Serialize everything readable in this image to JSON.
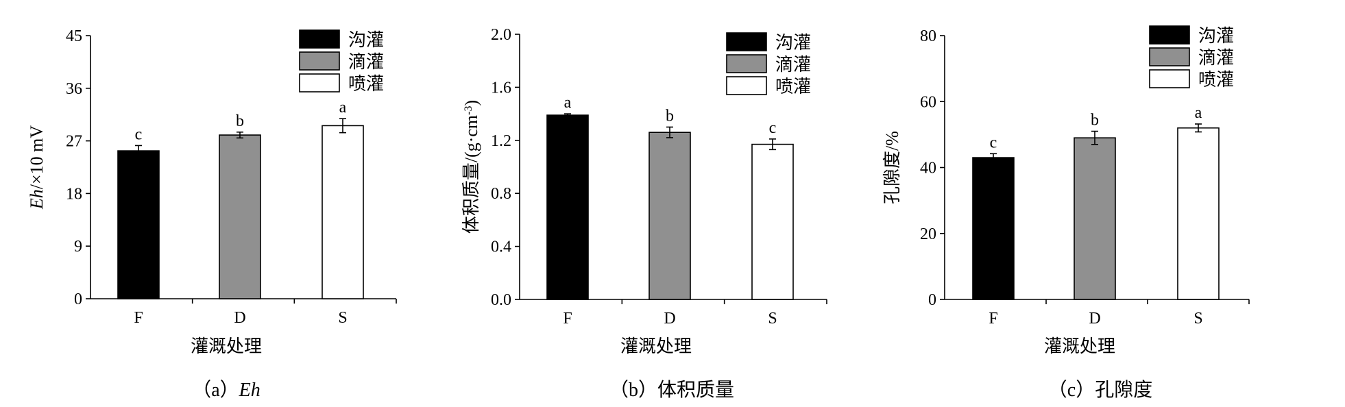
{
  "chart_data": [
    {
      "type": "bar",
      "categories": [
        "F",
        "D",
        "S"
      ],
      "values": [
        25.3,
        28.0,
        29.6
      ],
      "errors": [
        0.9,
        0.5,
        1.2
      ],
      "letters": [
        "c",
        "b",
        "a"
      ],
      "colors": [
        "#000000",
        "#909090",
        "#ffffff"
      ],
      "ylim": [
        0,
        45
      ],
      "yticks": [
        0,
        9,
        18,
        27,
        36,
        45
      ],
      "ytick_labels": [
        "0",
        "9",
        "18",
        "27",
        "36",
        "45"
      ],
      "xlabel": "灌溉处理",
      "ylabel_italic": "Eh",
      "ylabel_rest": "/×10 mV",
      "legend": [
        "沟灌",
        "滴灌",
        "喷灌"
      ],
      "legend_position": "top-right",
      "caption_prefix": "（a）",
      "caption_name": "Eh"
    },
    {
      "type": "bar",
      "categories": [
        "F",
        "D",
        "S"
      ],
      "values": [
        1.39,
        1.26,
        1.17
      ],
      "errors": [
        0.01,
        0.04,
        0.04
      ],
      "letters": [
        "a",
        "b",
        "c"
      ],
      "colors": [
        "#000000",
        "#909090",
        "#ffffff"
      ],
      "ylim": [
        0,
        2.0
      ],
      "yticks": [
        0,
        0.4,
        0.8,
        1.2,
        1.6,
        2.0
      ],
      "ytick_labels": [
        "0.0",
        "0.4",
        "0.8",
        "1.2",
        "1.6",
        "2.0"
      ],
      "xlabel": "灌溉处理",
      "ylabel_main": "体积质量/(g·cm",
      "ylabel_sup": "-3",
      "ylabel_end": ")",
      "legend": [
        "沟灌",
        "滴灌",
        "喷灌"
      ],
      "legend_position": "top-right",
      "caption_prefix": "（b）",
      "caption_name": "体积质量"
    },
    {
      "type": "bar",
      "categories": [
        "F",
        "D",
        "S"
      ],
      "values": [
        43,
        49,
        52
      ],
      "errors": [
        1.2,
        2.0,
        1.2
      ],
      "letters": [
        "c",
        "b",
        "a"
      ],
      "colors": [
        "#000000",
        "#909090",
        "#ffffff"
      ],
      "ylim": [
        0,
        80
      ],
      "yticks": [
        0,
        20,
        40,
        60,
        80
      ],
      "ytick_labels": [
        "0",
        "20",
        "40",
        "60",
        "80"
      ],
      "xlabel": "灌溉处理",
      "ylabel": "孔隙度/%",
      "legend": [
        "沟灌",
        "滴灌",
        "喷灌"
      ],
      "legend_position": "top-right",
      "caption_prefix": "（c）",
      "caption_name": "孔隙度"
    }
  ]
}
